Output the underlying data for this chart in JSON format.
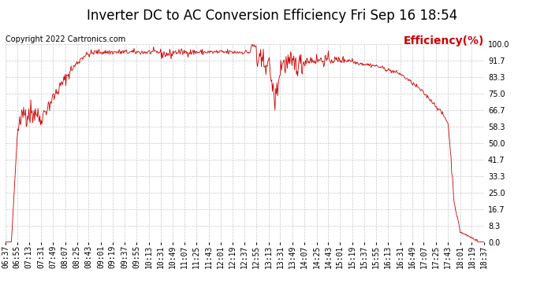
{
  "title": "Inverter DC to AC Conversion Efficiency Fri Sep 16 18:54",
  "copyright": "Copyright 2022 Cartronics.com",
  "legend_label": "Efficiency(%)",
  "line_color": "#cc0000",
  "background_color": "#ffffff",
  "grid_color": "#c8c8c8",
  "ylim": [
    0,
    100
  ],
  "yticks": [
    0.0,
    8.3,
    16.7,
    25.0,
    33.3,
    41.7,
    50.0,
    58.3,
    66.7,
    75.0,
    83.3,
    91.7,
    100.0
  ],
  "xtick_labels": [
    "06:37",
    "06:55",
    "07:13",
    "07:31",
    "07:49",
    "08:07",
    "08:25",
    "08:43",
    "09:01",
    "09:19",
    "09:37",
    "09:55",
    "10:13",
    "10:31",
    "10:49",
    "11:07",
    "11:25",
    "11:43",
    "12:01",
    "12:19",
    "12:37",
    "12:55",
    "13:13",
    "13:31",
    "13:49",
    "14:07",
    "14:25",
    "14:43",
    "15:01",
    "15:19",
    "15:37",
    "15:55",
    "16:13",
    "16:31",
    "16:49",
    "17:07",
    "17:25",
    "17:43",
    "18:01",
    "18:19",
    "18:37"
  ],
  "title_fontsize": 12,
  "copyright_fontsize": 7,
  "legend_fontsize": 10,
  "tick_fontsize": 7,
  "grid_style": "--"
}
